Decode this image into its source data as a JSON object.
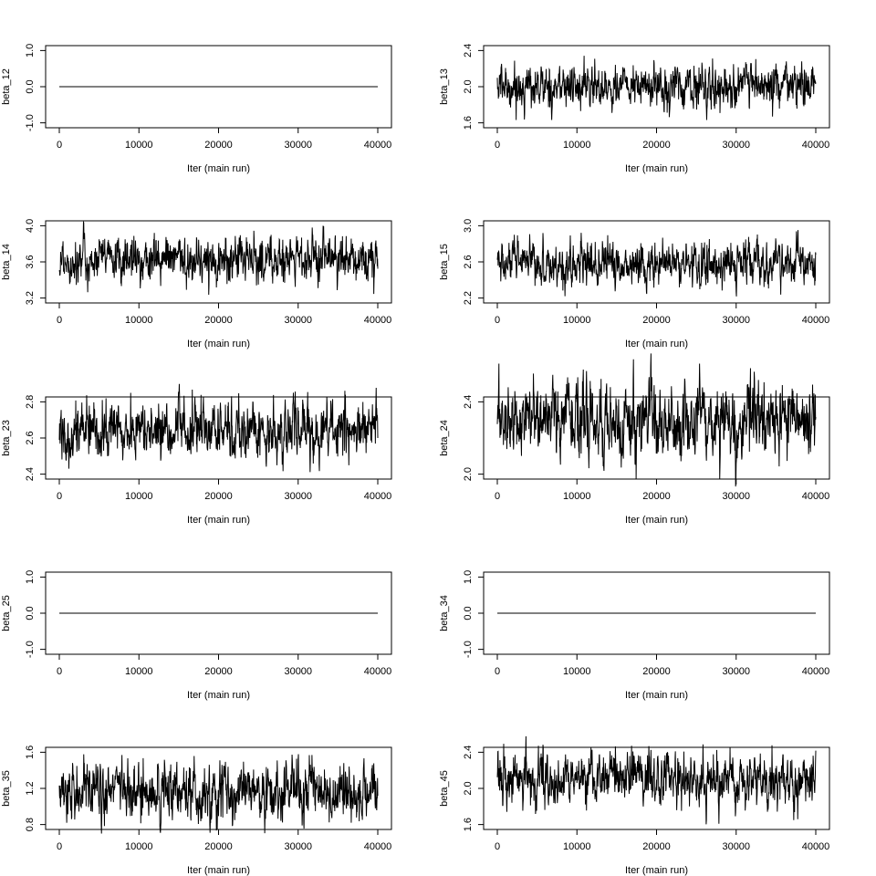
{
  "chart_data": [
    {
      "type": "line",
      "ylabel": "beta_12",
      "xlabel": "Iter (main run)",
      "xlim": [
        0,
        40000
      ],
      "ylim": [
        -1.0,
        1.0
      ],
      "yticks": [
        "-1.0",
        "0.0",
        "1.0"
      ],
      "xticks": [
        "0",
        "10000",
        "20000",
        "30000",
        "40000"
      ],
      "mean": 0.0,
      "sd": 0.0,
      "range": [
        0.0,
        0.0
      ]
    },
    {
      "type": "line",
      "ylabel": "beta_13",
      "xlabel": "Iter (main run)",
      "xlim": [
        0,
        40000
      ],
      "ylim": [
        1.6,
        2.4
      ],
      "yticks": [
        "1.6",
        "2.0",
        "2.4"
      ],
      "xticks": [
        "0",
        "10000",
        "20000",
        "30000",
        "40000"
      ],
      "mean": 2.0,
      "sd": 0.12,
      "range": [
        1.63,
        2.38
      ]
    },
    {
      "type": "line",
      "ylabel": "beta_14",
      "xlabel": "Iter (main run)",
      "xlim": [
        0,
        40000
      ],
      "ylim": [
        3.2,
        4.0
      ],
      "yticks": [
        "3.2",
        "3.6",
        "4.0"
      ],
      "xticks": [
        "0",
        "10000",
        "20000",
        "30000",
        "40000"
      ],
      "mean": 3.62,
      "sd": 0.13,
      "range": [
        3.18,
        4.04
      ]
    },
    {
      "type": "line",
      "ylabel": "beta_15",
      "xlabel": "Iter (main run)",
      "xlim": [
        0,
        40000
      ],
      "ylim": [
        2.2,
        3.0
      ],
      "yticks": [
        "2.2",
        "2.6",
        "3.0"
      ],
      "xticks": [
        "0",
        "10000",
        "20000",
        "30000",
        "40000"
      ],
      "mean": 2.57,
      "sd": 0.12,
      "range": [
        2.04,
        3.04
      ]
    },
    {
      "type": "line",
      "ylabel": "beta_23",
      "xlabel": "Iter (main run)",
      "xlim": [
        0,
        40000
      ],
      "ylim": [
        2.4,
        2.8
      ],
      "yticks": [
        "2.4",
        "2.6",
        "2.8"
      ],
      "xticks": [
        "0",
        "10000",
        "20000",
        "30000",
        "40000"
      ],
      "mean": 2.64,
      "sd": 0.08,
      "range": [
        2.38,
        2.95
      ]
    },
    {
      "type": "line",
      "ylabel": "beta_24",
      "xlabel": "Iter (main run)",
      "xlim": [
        0,
        40000
      ],
      "ylim": [
        2.0,
        2.4
      ],
      "yticks": [
        "2.0",
        "2.4"
      ],
      "xticks": [
        "0",
        "10000",
        "20000",
        "30000",
        "40000"
      ],
      "mean": 2.3,
      "sd": 0.1,
      "range": [
        1.93,
        2.67
      ]
    },
    {
      "type": "line",
      "ylabel": "beta_25",
      "xlabel": "Iter (main run)",
      "xlim": [
        0,
        40000
      ],
      "ylim": [
        -1.0,
        1.0
      ],
      "yticks": [
        "-1.0",
        "0.0",
        "1.0"
      ],
      "xticks": [
        "0",
        "10000",
        "20000",
        "30000",
        "40000"
      ],
      "mean": 0.0,
      "sd": 0.0,
      "range": [
        0.0,
        0.0
      ]
    },
    {
      "type": "line",
      "ylabel": "beta_34",
      "xlabel": "Iter (main run)",
      "xlim": [
        0,
        40000
      ],
      "ylim": [
        -1.0,
        1.0
      ],
      "yticks": [
        "-1.0",
        "0.0",
        "1.0"
      ],
      "xticks": [
        "0",
        "10000",
        "20000",
        "30000",
        "40000"
      ],
      "mean": 0.0,
      "sd": 0.0,
      "range": [
        0.0,
        0.0
      ]
    },
    {
      "type": "line",
      "ylabel": "beta_35",
      "xlabel": "Iter (main run)",
      "xlim": [
        0,
        40000
      ],
      "ylim": [
        0.8,
        1.6
      ],
      "yticks": [
        "0.8",
        "1.2",
        "1.6"
      ],
      "xticks": [
        "0",
        "10000",
        "20000",
        "30000",
        "40000"
      ],
      "mean": 1.17,
      "sd": 0.16,
      "range": [
        0.7,
        1.58
      ]
    },
    {
      "type": "line",
      "ylabel": "beta_45",
      "xlabel": "Iter (main run)",
      "xlim": [
        0,
        40000
      ],
      "ylim": [
        1.6,
        2.4
      ],
      "yticks": [
        "1.6",
        "2.0",
        "2.4"
      ],
      "xticks": [
        "0",
        "10000",
        "20000",
        "30000",
        "40000"
      ],
      "mean": 2.1,
      "sd": 0.14,
      "range": [
        1.6,
        2.58
      ]
    }
  ]
}
